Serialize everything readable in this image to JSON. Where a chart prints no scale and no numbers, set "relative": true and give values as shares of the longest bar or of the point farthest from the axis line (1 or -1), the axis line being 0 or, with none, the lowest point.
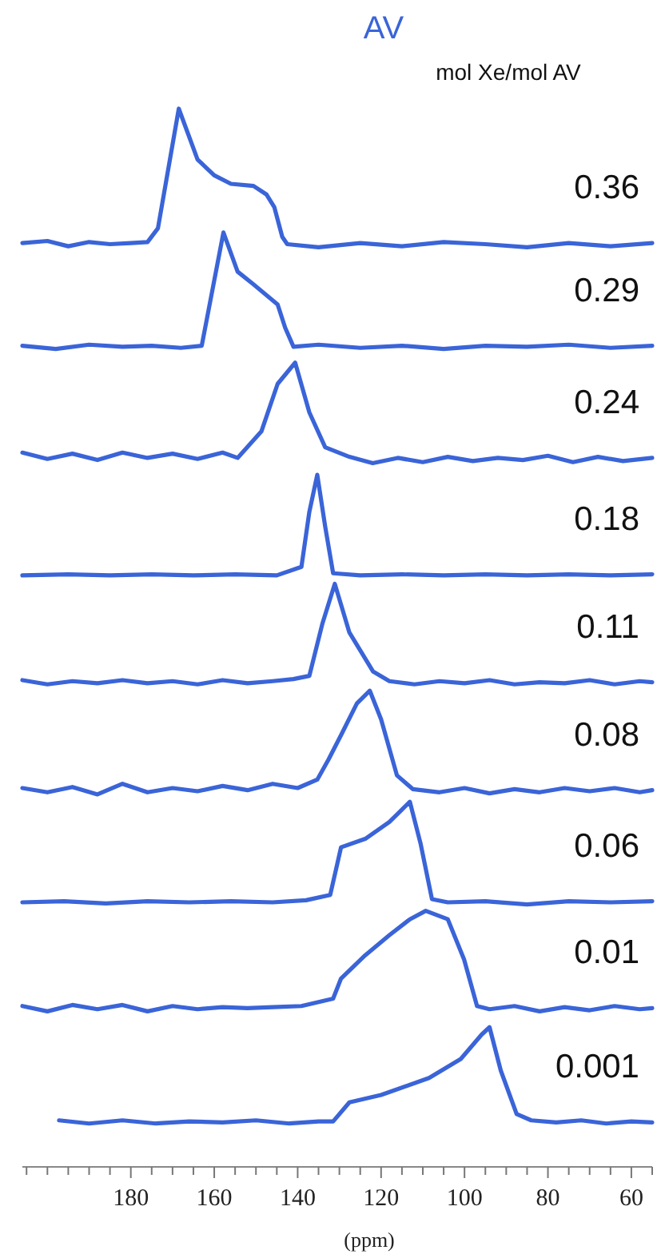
{
  "chart_data": {
    "type": "line",
    "title": "AV",
    "subtitle": "mol Xe/mol AV",
    "relative": true,
    "xlim": [
      206,
      55
    ],
    "xlabel": "(ppm)",
    "tick_labels": "x",
    "xticks": [
      {
        "value": 205,
        "label": null
      },
      {
        "value": 200,
        "label": null
      },
      {
        "value": 195,
        "label": null
      },
      {
        "value": 190,
        "label": null
      },
      {
        "value": 185,
        "label": null
      },
      180,
      {
        "value": 175,
        "label": null
      },
      {
        "value": 170,
        "label": null
      },
      {
        "value": 165,
        "label": null
      },
      160,
      {
        "value": 155,
        "label": null
      },
      {
        "value": 150,
        "label": null
      },
      {
        "value": 145,
        "label": null
      },
      140,
      {
        "value": 135,
        "label": null
      },
      {
        "value": 130,
        "label": null
      },
      {
        "value": 125,
        "label": null
      },
      120,
      {
        "value": 115,
        "label": null
      },
      {
        "value": 110,
        "label": null
      },
      {
        "value": 105,
        "label": null
      },
      100,
      {
        "value": 95,
        "label": null
      },
      {
        "value": 90,
        "label": null
      },
      {
        "value": 85,
        "label": null
      },
      80,
      {
        "value": 75,
        "label": null
      },
      {
        "value": 70,
        "label": null
      },
      {
        "value": 65,
        "label": null
      },
      60,
      {
        "value": 55,
        "label": null
      }
    ],
    "series": [
      {
        "name": "0.36",
        "color": "#3a64d8",
        "x": [
          206,
          200,
          195,
          190,
          185,
          180,
          176,
          173.5,
          168.5,
          164,
          160,
          156,
          150.6,
          147.5,
          145.6,
          143.7,
          142.5,
          135,
          125,
          115,
          105,
          95,
          85,
          75,
          65,
          55
        ],
        "values": [
          0.873,
          0.875,
          0.87,
          0.874,
          0.872,
          0.873,
          0.874,
          0.887,
          1.0,
          0.952,
          0.937,
          0.929,
          0.927,
          0.919,
          0.907,
          0.879,
          0.872,
          0.869,
          0.873,
          0.87,
          0.874,
          0.872,
          0.869,
          0.873,
          0.87,
          0.873
        ]
      },
      {
        "name": "0.29",
        "color": "#3a64d8",
        "x": [
          206,
          198,
          190,
          182,
          175,
          168,
          163,
          157.8,
          154.4,
          150.6,
          144.8,
          143,
          141,
          135,
          125,
          115,
          105,
          95,
          85,
          75,
          65,
          55
        ],
        "values": [
          0.776,
          0.773,
          0.777,
          0.775,
          0.776,
          0.774,
          0.776,
          0.883,
          0.846,
          0.834,
          0.815,
          0.793,
          0.775,
          0.777,
          0.774,
          0.776,
          0.773,
          0.776,
          0.775,
          0.777,
          0.774,
          0.776
        ]
      },
      {
        "name": "0.24",
        "color": "#3a64d8",
        "x": [
          206,
          200,
          194,
          188,
          182,
          176,
          170,
          164,
          158,
          154.4,
          148.7,
          144.8,
          140.6,
          137.2,
          133.4,
          127.6,
          122,
          116,
          110,
          104,
          98,
          92,
          86,
          80,
          74,
          68,
          62,
          55
        ],
        "values": [
          0.675,
          0.669,
          0.674,
          0.668,
          0.675,
          0.67,
          0.674,
          0.669,
          0.675,
          0.67,
          0.695,
          0.74,
          0.76,
          0.713,
          0.68,
          0.671,
          0.665,
          0.67,
          0.666,
          0.671,
          0.667,
          0.67,
          0.668,
          0.672,
          0.666,
          0.671,
          0.667,
          0.67
        ]
      },
      {
        "name": "0.18",
        "color": "#3a64d8",
        "x": [
          206,
          195,
          185,
          175,
          165,
          155,
          145,
          139.1,
          137.2,
          135.3,
          133.4,
          131.5,
          125,
          115,
          105,
          95,
          85,
          75,
          65,
          55
        ],
        "values": [
          0.559,
          0.56,
          0.559,
          0.56,
          0.559,
          0.56,
          0.559,
          0.567,
          0.619,
          0.654,
          0.605,
          0.561,
          0.559,
          0.56,
          0.559,
          0.56,
          0.559,
          0.56,
          0.559,
          0.56
        ]
      },
      {
        "name": "0.11",
        "color": "#3a64d8",
        "x": [
          206,
          200,
          194,
          188,
          182,
          176,
          170,
          164,
          158,
          152,
          146,
          141,
          137.2,
          134.1,
          131.1,
          127.6,
          121.9,
          118,
          112,
          106,
          100,
          94,
          88,
          82,
          76,
          70,
          64,
          58,
          55
        ],
        "values": [
          0.46,
          0.456,
          0.459,
          0.457,
          0.46,
          0.457,
          0.459,
          0.456,
          0.46,
          0.457,
          0.459,
          0.461,
          0.464,
          0.513,
          0.551,
          0.505,
          0.468,
          0.459,
          0.456,
          0.459,
          0.457,
          0.46,
          0.456,
          0.458,
          0.457,
          0.46,
          0.456,
          0.459,
          0.458
        ]
      },
      {
        "name": "0.08",
        "color": "#3a64d8",
        "x": [
          206,
          200,
          194,
          188,
          182,
          176,
          170,
          164,
          158,
          152,
          146,
          140,
          135.3,
          132.6,
          129.6,
          125.8,
          122.7,
          120,
          116.2,
          112.4,
          106,
          100,
          94,
          88,
          82,
          76,
          70,
          64,
          58,
          55
        ],
        "values": [
          0.358,
          0.354,
          0.359,
          0.352,
          0.362,
          0.354,
          0.358,
          0.355,
          0.36,
          0.356,
          0.362,
          0.358,
          0.366,
          0.385,
          0.408,
          0.438,
          0.45,
          0.423,
          0.37,
          0.357,
          0.354,
          0.358,
          0.353,
          0.357,
          0.354,
          0.358,
          0.355,
          0.358,
          0.354,
          0.356
        ]
      },
      {
        "name": "0.06",
        "color": "#3a64d8",
        "x": [
          206,
          196,
          186,
          176,
          166,
          156,
          146,
          138,
          132.2,
          129.6,
          123.8,
          118,
          113.1,
          110.5,
          107.8,
          104,
          95,
          85,
          75,
          65,
          55
        ],
        "values": [
          0.25,
          0.251,
          0.249,
          0.251,
          0.25,
          0.251,
          0.25,
          0.252,
          0.257,
          0.302,
          0.31,
          0.326,
          0.345,
          0.305,
          0.253,
          0.25,
          0.251,
          0.248,
          0.251,
          0.25,
          0.251
        ]
      },
      {
        "name": "0.01",
        "color": "#3a64d8",
        "x": [
          206,
          200,
          194,
          188,
          182,
          176,
          170,
          164,
          158,
          152,
          146,
          139.1,
          131.5,
          129.6,
          123.8,
          118,
          113.1,
          109.3,
          104,
          100.1,
          97,
          94,
          88,
          82,
          76,
          70,
          64,
          58,
          55
        ],
        "values": [
          0.152,
          0.147,
          0.153,
          0.149,
          0.153,
          0.147,
          0.152,
          0.149,
          0.151,
          0.15,
          0.151,
          0.152,
          0.159,
          0.178,
          0.2,
          0.219,
          0.234,
          0.242,
          0.234,
          0.196,
          0.152,
          0.149,
          0.152,
          0.147,
          0.151,
          0.148,
          0.152,
          0.149,
          0.15
        ]
      },
      {
        "name": "0.001",
        "color": "#3a64d8",
        "x": [
          197.2,
          190,
          182,
          174,
          166,
          158,
          150,
          142,
          135,
          131.5,
          127.6,
          120,
          108.5,
          100.9,
          95.9,
          94,
          91.3,
          87.5,
          84,
          78,
          72,
          66,
          60,
          55
        ],
        "values": [
          0.044,
          0.041,
          0.044,
          0.041,
          0.043,
          0.042,
          0.044,
          0.041,
          0.043,
          0.043,
          0.061,
          0.068,
          0.084,
          0.102,
          0.125,
          0.132,
          0.091,
          0.05,
          0.044,
          0.042,
          0.044,
          0.041,
          0.043,
          0.042
        ]
      }
    ]
  }
}
